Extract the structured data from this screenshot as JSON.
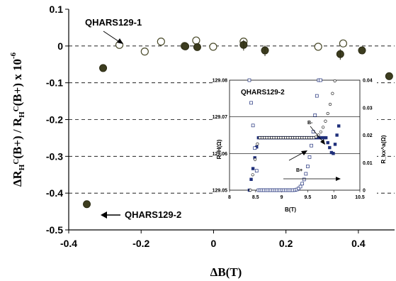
{
  "chart_data": [
    {
      "type": "scatter",
      "xlabel": "ΔB(T)",
      "ylabel": "ΔR_H^C(B+) / R_H^C(B+) x 10^-6",
      "xlim": [
        -0.4,
        0.5
      ],
      "ylim": [
        -0.5,
        0.1
      ],
      "x_ticks": [
        "-0.4",
        "-0.2",
        "0",
        "0.2",
        "0.4"
      ],
      "y_ticks": [
        "0.1",
        "0",
        "-0.1",
        "-0.2",
        "-0.3",
        "-0.4",
        "-0.5"
      ],
      "grid": "horizontal dashed",
      "series": [
        {
          "name": "QHARS129-1",
          "marker": "open-circle",
          "points": [
            [
              -0.26,
              0.003
            ],
            [
              -0.19,
              -0.015
            ],
            [
              -0.145,
              0.012
            ],
            [
              -0.08,
              0.0
            ],
            [
              -0.048,
              0.015
            ],
            [
              -0.001,
              -0.002
            ],
            [
              0.083,
              0.012
            ],
            [
              0.289,
              -0.002
            ],
            [
              0.358,
              0.007
            ]
          ]
        },
        {
          "name": "QHARS129-2",
          "marker": "filled-circle",
          "points": [
            [
              -0.35,
              -0.43
            ],
            [
              -0.305,
              -0.06
            ],
            [
              -0.078,
              -0.001
            ],
            [
              -0.045,
              -0.003
            ],
            [
              0.083,
              0.003
            ],
            [
              0.142,
              -0.012
            ],
            [
              0.35,
              -0.022
            ],
            [
              0.41,
              -0.012
            ],
            [
              0.485,
              -0.082
            ]
          ]
        }
      ],
      "annotations": [
        "QHARS129-1",
        "QHARS129-2"
      ]
    },
    {
      "type": "line",
      "xlabel": "B(T)",
      "ylabel_left": "R_H(Ω)",
      "ylabel_right": "R_xx^a(Ω)",
      "xlim": [
        8,
        10.5
      ],
      "ylim_left": [
        129.05,
        129.08
      ],
      "ylim_right": [
        0,
        0.04
      ],
      "x_ticks": [
        "8",
        "8.5",
        "9",
        "9.5",
        "10",
        "10.5"
      ],
      "y_ticks_left": [
        "129.08",
        "129.07",
        "129.06",
        "129.05"
      ],
      "y_ticks_right": [
        "0.04",
        "0.03",
        "0.02",
        "0.01",
        "0"
      ],
      "annotation": "QHARS129-2",
      "arrow_labels": [
        "B-",
        "B+"
      ]
    }
  ]
}
